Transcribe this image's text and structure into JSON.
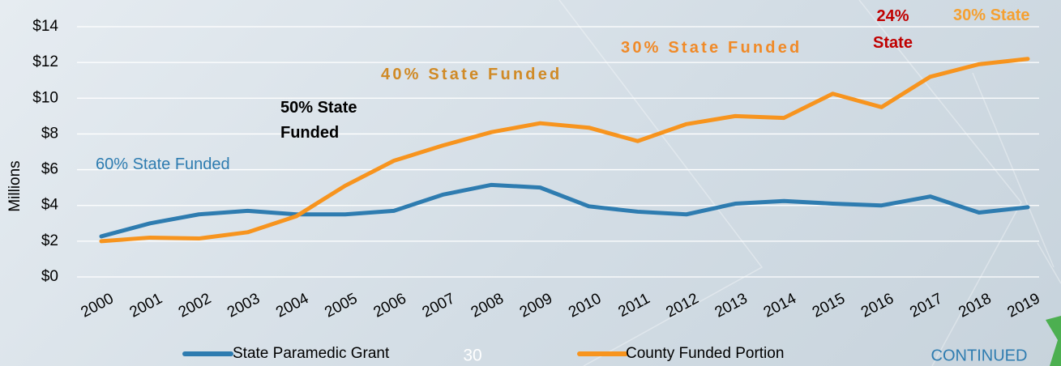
{
  "chart_data": {
    "type": "line",
    "y_label": "Millions",
    "categories": [
      "2000",
      "2001",
      "2002",
      "2003",
      "2004",
      "2005",
      "2006",
      "2007",
      "2008",
      "2009",
      "2010",
      "2011",
      "2012",
      "2013",
      "2014",
      "2015",
      "2016",
      "2017",
      "2018",
      "2019"
    ],
    "series": [
      {
        "name": "State Paramedic Grant",
        "color": "#2e7cb0",
        "values": [
          2.27,
          3.0,
          3.5,
          3.7,
          3.5,
          3.5,
          3.7,
          4.6,
          5.15,
          5.0,
          3.95,
          3.65,
          3.5,
          4.1,
          4.25,
          4.1,
          4.0,
          4.5,
          3.6,
          3.9
        ]
      },
      {
        "name": "County Funded Portion",
        "color": "#f7941e",
        "values": [
          2.0,
          2.2,
          2.15,
          2.5,
          3.4,
          5.1,
          6.5,
          7.35,
          8.1,
          8.6,
          8.35,
          7.6,
          8.55,
          9.0,
          8.9,
          10.25,
          9.5,
          11.2,
          11.9,
          12.2
        ]
      }
    ],
    "ylim": [
      0,
      14
    ],
    "yticks": [
      {
        "value": 0,
        "label": "$0"
      },
      {
        "value": 2,
        "label": "$2"
      },
      {
        "value": 4,
        "label": "$4"
      },
      {
        "value": 6,
        "label": "$6"
      },
      {
        "value": 8,
        "label": "$8"
      },
      {
        "value": 10,
        "label": "$10"
      },
      {
        "value": 12,
        "label": "$12"
      },
      {
        "value": 14,
        "label": "$14"
      }
    ],
    "grid": true,
    "legend": "bottom",
    "annotations": [
      {
        "text": "60% State Funded",
        "color": "#2e7cb0"
      },
      {
        "text": "50% State Funded",
        "color": "#000000"
      },
      {
        "text": "40% State Funded",
        "color": "#d08a26"
      },
      {
        "text": "30% State Funded",
        "color": "#f08a28"
      },
      {
        "text": "24% State",
        "color": "#c00000"
      },
      {
        "text": "30% State",
        "color": "#f5a030"
      }
    ]
  },
  "slide": {
    "page_number": "30",
    "continue_label": "CONTINUED"
  }
}
